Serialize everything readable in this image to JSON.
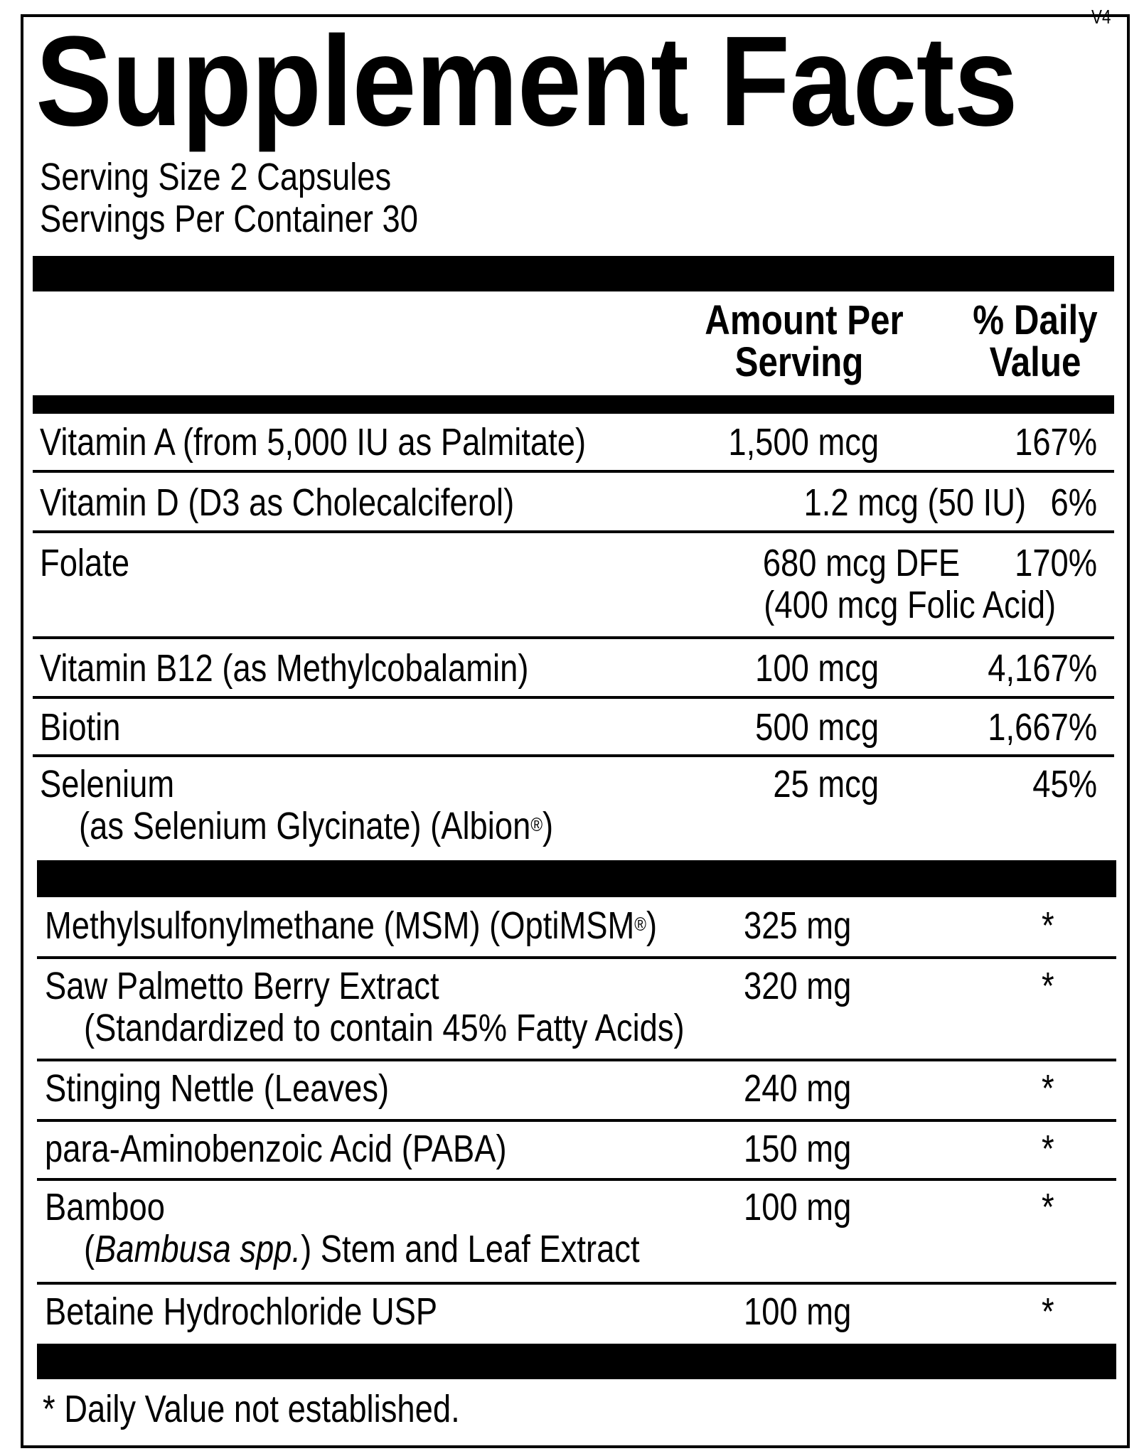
{
  "title": "Supplement Facts",
  "version": "V4",
  "serving_size": "Serving Size 2 Capsules",
  "servings_per_container": "Servings Per Container 30",
  "header": {
    "amount_line1": "Amount Per",
    "amount_line2": "Serving",
    "dv_line1": "% Daily",
    "dv_line2": "Value"
  },
  "vitamins": [
    {
      "name": "Vitamin A (from 5,000 IU as Palmitate)",
      "amount": "1,500 mcg",
      "dv": "167%"
    },
    {
      "name": "Vitamin D (D3 as Cholecalciferol)",
      "amount": "1.2 mcg (50 IU)",
      "dv": "6%"
    },
    {
      "name": "Folate",
      "amount": "680 mcg DFE",
      "amount_sub": "(400 mcg Folic Acid)",
      "dv": "170%"
    },
    {
      "name": "Vitamin B12 (as Methylcobalamin)",
      "amount": "100 mcg",
      "dv": "4,167%"
    },
    {
      "name": "Biotin",
      "amount": "500 mcg",
      "dv": "1,667%"
    },
    {
      "name": "Selenium",
      "sub_prefix": "(as Selenium Glycinate) (Albion",
      "sub_mark": "®",
      "sub_suffix": ")",
      "amount": "25 mcg",
      "dv": "45%"
    }
  ],
  "other": [
    {
      "name_prefix": "Methylsulfonylmethane (MSM) (OptiMSM",
      "name_mark": "®",
      "name_suffix": ")",
      "amount": "325 mg",
      "dv": "*"
    },
    {
      "name": "Saw Palmetto Berry Extract",
      "sub": "(Standardized to contain 45% Fatty Acids)",
      "amount": "320 mg",
      "dv": "*"
    },
    {
      "name": "Stinging Nettle (Leaves)",
      "amount": "240 mg",
      "dv": "*"
    },
    {
      "name": "para-Aminobenzoic Acid (PABA)",
      "amount": "150 mg",
      "dv": "*"
    },
    {
      "name": "Bamboo",
      "sub_open": "(",
      "sub_italic": "Bambusa spp.",
      "sub_rest": ") Stem and Leaf Extract",
      "amount": "100 mg",
      "dv": "*"
    },
    {
      "name": "Betaine Hydrochloride USP",
      "amount": "100 mg",
      "dv": "*"
    }
  ],
  "footnote": "* Daily Value not established."
}
